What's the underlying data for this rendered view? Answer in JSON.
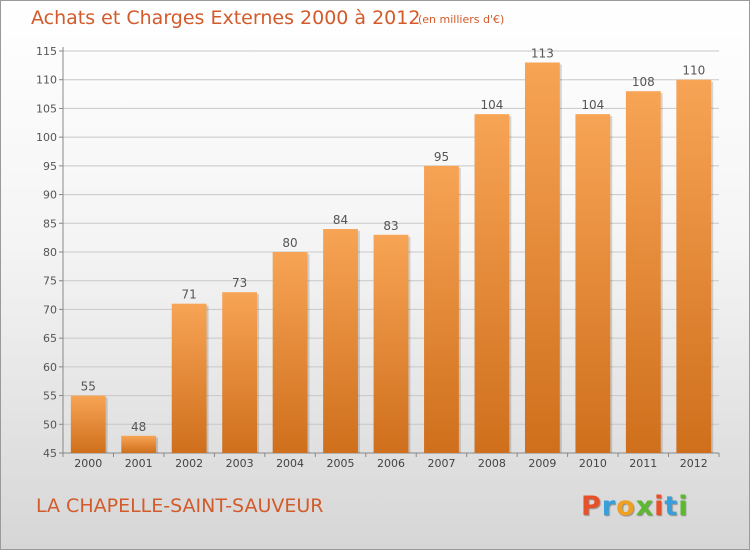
{
  "header": {
    "title": "Achats et Charges Externes 2000 à 2012",
    "subtitle": "(en milliers d'€)"
  },
  "footer": {
    "commune": "LA CHAPELLE-SAINT-SAUVEUR",
    "logo": {
      "letters": [
        "P",
        "r",
        "o",
        "x",
        "i",
        "t",
        "i"
      ],
      "colors": [
        "#e8502a",
        "#3a9fd8",
        "#f0a020",
        "#5cb82e",
        "#e8502a",
        "#3a9fd8",
        "#5cb82e"
      ]
    }
  },
  "chart_data": {
    "type": "bar",
    "title": "Achats et Charges Externes 2000 à 2012",
    "subtitle": "(en milliers d'€)",
    "categories": [
      "2000",
      "2001",
      "2002",
      "2003",
      "2004",
      "2005",
      "2006",
      "2007",
      "2008",
      "2009",
      "2010",
      "2011",
      "2012"
    ],
    "values": [
      55,
      48,
      71,
      73,
      80,
      84,
      83,
      95,
      104,
      113,
      104,
      108,
      110
    ],
    "ylim": [
      45,
      115
    ],
    "yticks": [
      45,
      50,
      55,
      60,
      65,
      70,
      75,
      80,
      85,
      90,
      95,
      100,
      105,
      110,
      115
    ],
    "grid": true,
    "bar_color_top": "#f7a455",
    "bar_color_bottom": "#cf6f1c",
    "text_color": "#d35a2a"
  }
}
